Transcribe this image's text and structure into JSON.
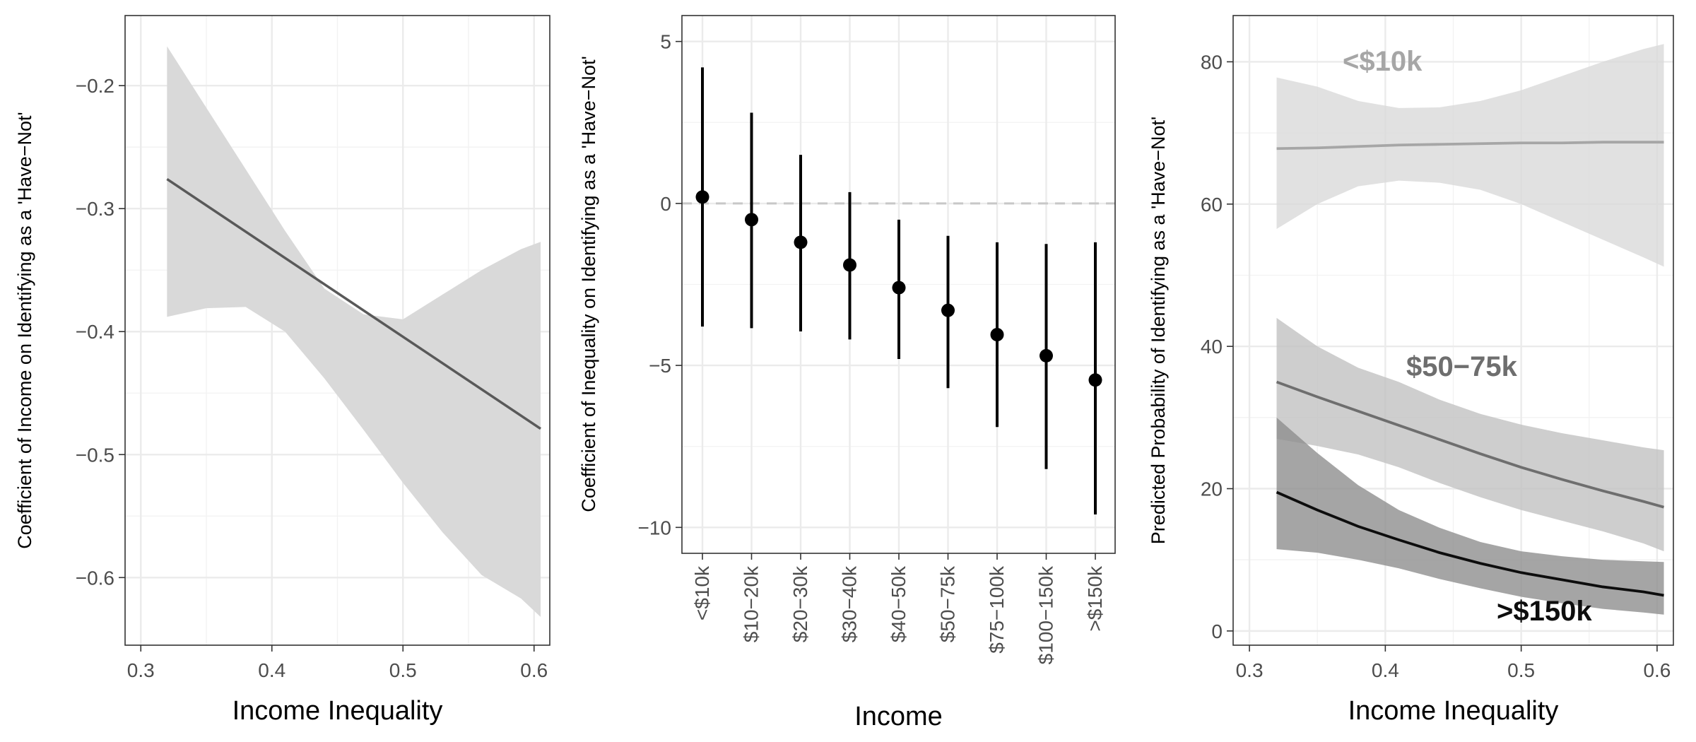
{
  "chart_data": [
    {
      "type": "line",
      "panel": "left",
      "xlabel": "Income Inequality",
      "ylabel": "Coefficient of Income on Identifying as a 'Have−Not'",
      "xlim": [
        0.288,
        0.612
      ],
      "ylim": [
        -0.655,
        -0.143
      ],
      "xticks": [
        0.3,
        0.4,
        0.5,
        0.6
      ],
      "xtick_labels": [
        "0.3",
        "0.4",
        "0.5",
        "0.6"
      ],
      "yticks": [
        -0.6,
        -0.5,
        -0.4,
        -0.3,
        -0.2
      ],
      "ytick_labels": [
        "−0.6",
        "−0.5",
        "−0.4",
        "−0.3",
        "−0.2"
      ],
      "line": {
        "color": "#595959",
        "x": [
          0.32,
          0.605
        ],
        "y": [
          -0.276,
          -0.479
        ]
      },
      "ribbon": {
        "color": "#d9d9d9",
        "x": [
          0.32,
          0.35,
          0.38,
          0.41,
          0.44,
          0.47,
          0.5,
          0.53,
          0.56,
          0.59,
          0.605
        ],
        "upper": [
          -0.168,
          -0.218,
          -0.268,
          -0.318,
          -0.365,
          -0.386,
          -0.39,
          -0.37,
          -0.35,
          -0.333,
          -0.327
        ],
        "lower": [
          -0.388,
          -0.381,
          -0.38,
          -0.4,
          -0.438,
          -0.48,
          -0.523,
          -0.563,
          -0.598,
          -0.617,
          -0.632
        ]
      }
    },
    {
      "type": "errorbar",
      "panel": "middle",
      "xlabel": "Income",
      "ylabel": "Coefficient of Inequality on Identifying as a 'Have−Not'",
      "categories": [
        "<$10k",
        "$10−20k",
        "$20−30k",
        "$30−40k",
        "$40−50k",
        "$50−75k",
        "$75−100k",
        "$100−150k",
        ">$150k"
      ],
      "values": [
        0.2,
        -0.5,
        -1.2,
        -1.9,
        -2.6,
        -3.3,
        -4.05,
        -4.7,
        -5.45
      ],
      "lower": [
        -3.8,
        -3.85,
        -3.95,
        -4.2,
        -4.8,
        -5.7,
        -6.9,
        -8.2,
        -9.6
      ],
      "upper": [
        4.2,
        2.8,
        1.5,
        0.35,
        -0.5,
        -1.0,
        -1.2,
        -1.25,
        -1.2
      ],
      "ylim": [
        -10.8,
        5.8
      ],
      "yticks": [
        -10,
        -5,
        0,
        5
      ],
      "ytick_labels": [
        "−10",
        "−5",
        "0",
        "5"
      ],
      "reference_line": 0
    },
    {
      "type": "line",
      "panel": "right",
      "xlabel": "Income Inequality",
      "ylabel": "Predicted Probability of Identifying as a 'Have−Not'",
      "xlim": [
        0.288,
        0.612
      ],
      "ylim": [
        -2,
        86.5
      ],
      "xticks": [
        0.3,
        0.4,
        0.5,
        0.6
      ],
      "xtick_labels": [
        "0.3",
        "0.4",
        "0.5",
        "0.6"
      ],
      "yticks": [
        0,
        20,
        40,
        60,
        80
      ],
      "ytick_labels": [
        "0",
        "20",
        "40",
        "60",
        "80"
      ],
      "series": [
        {
          "name": "<$10k",
          "color": "#a6a6a6",
          "ribbon_color": "#d9d9d9",
          "x": [
            0.32,
            0.35,
            0.38,
            0.41,
            0.44,
            0.47,
            0.5,
            0.53,
            0.56,
            0.59,
            0.605
          ],
          "values": [
            67.8,
            67.9,
            68.1,
            68.3,
            68.4,
            68.5,
            68.6,
            68.6,
            68.7,
            68.7,
            68.7
          ],
          "upper": [
            77.8,
            76.5,
            74.5,
            73.5,
            73.6,
            74.5,
            76.0,
            78.0,
            80.0,
            81.8,
            82.5
          ],
          "lower": [
            56.5,
            60.0,
            62.5,
            63.3,
            63.0,
            62.0,
            60.0,
            57.5,
            55.0,
            52.5,
            51.2
          ],
          "label_value": "<$10k"
        },
        {
          "name": "$50−75k",
          "color": "#6e6e6e",
          "ribbon_color": "#c2c2c2",
          "x": [
            0.32,
            0.35,
            0.38,
            0.41,
            0.44,
            0.47,
            0.5,
            0.53,
            0.56,
            0.59,
            0.605
          ],
          "values": [
            35.0,
            32.9,
            30.9,
            28.9,
            26.9,
            24.9,
            23.0,
            21.3,
            19.7,
            18.2,
            17.4
          ],
          "upper": [
            44.0,
            40.0,
            37.0,
            35.0,
            32.5,
            30.5,
            29.0,
            27.8,
            26.8,
            25.8,
            25.4
          ],
          "lower": [
            27.0,
            26.0,
            24.8,
            23.0,
            20.8,
            18.8,
            17.0,
            15.5,
            14.0,
            12.3,
            11.2
          ],
          "label_value": "$50−75k"
        },
        {
          "name": ">$150k",
          "color": "#0d0d0d",
          "ribbon_color": "#8f8f8f",
          "x": [
            0.32,
            0.35,
            0.38,
            0.41,
            0.44,
            0.47,
            0.5,
            0.53,
            0.56,
            0.59,
            0.605
          ],
          "values": [
            19.5,
            17.0,
            14.7,
            12.8,
            11.0,
            9.5,
            8.2,
            7.2,
            6.2,
            5.5,
            5.0
          ],
          "upper": [
            30.0,
            25.0,
            20.5,
            17.0,
            14.5,
            12.5,
            11.2,
            10.5,
            10.0,
            9.8,
            9.7
          ],
          "lower": [
            11.5,
            11.0,
            10.0,
            8.8,
            7.3,
            6.0,
            4.8,
            3.9,
            3.1,
            2.6,
            2.3
          ],
          "label_value": ">$150k"
        }
      ]
    }
  ]
}
